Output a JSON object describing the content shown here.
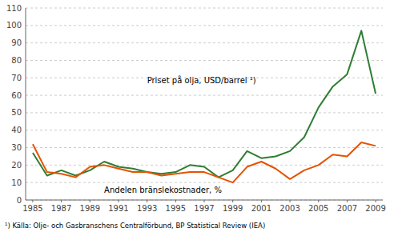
{
  "chart_data": {
    "type": "line",
    "x": [
      1985,
      1986,
      1987,
      1988,
      1989,
      1990,
      1991,
      1992,
      1993,
      1994,
      1995,
      1996,
      1997,
      1998,
      1999,
      2000,
      2001,
      2002,
      2003,
      2004,
      2005,
      2006,
      2007,
      2008,
      2009
    ],
    "series": [
      {
        "color": "#2e7d32",
        "values": [
          27,
          14,
          17,
          14,
          17,
          22,
          19,
          18,
          16,
          15,
          16,
          20,
          19,
          13,
          17,
          28,
          24,
          25,
          28,
          36,
          53,
          65,
          72,
          97,
          61
        ]
      },
      {
        "color": "#e65100",
        "values": [
          32,
          16,
          15,
          13,
          19,
          20,
          18,
          16,
          16,
          14,
          15,
          16,
          16,
          13,
          10,
          19,
          22,
          18,
          12,
          17,
          20,
          26,
          25,
          33,
          31
        ]
      }
    ],
    "annotations": [
      {
        "text": "Priset på olja, USD/barrel ¹)",
        "x": 1993,
        "y": 67
      },
      {
        "text": "Andelen bränslekostnader, %",
        "x": 1990,
        "y": 4
      }
    ],
    "footnote": "¹) Källa: Olje- och Gasbranschens Centralförbund, BP Statistical Review (IEA)",
    "xlim": [
      1984.5,
      2009.5
    ],
    "xticks": [
      1985,
      1987,
      1989,
      1991,
      1993,
      1995,
      1997,
      1999,
      2001,
      2003,
      2005,
      2007,
      2009
    ],
    "ylim": [
      0,
      110
    ],
    "yticks": [
      0,
      10,
      20,
      30,
      40,
      50,
      60,
      70,
      80,
      90,
      100,
      110
    ],
    "grid": true
  }
}
